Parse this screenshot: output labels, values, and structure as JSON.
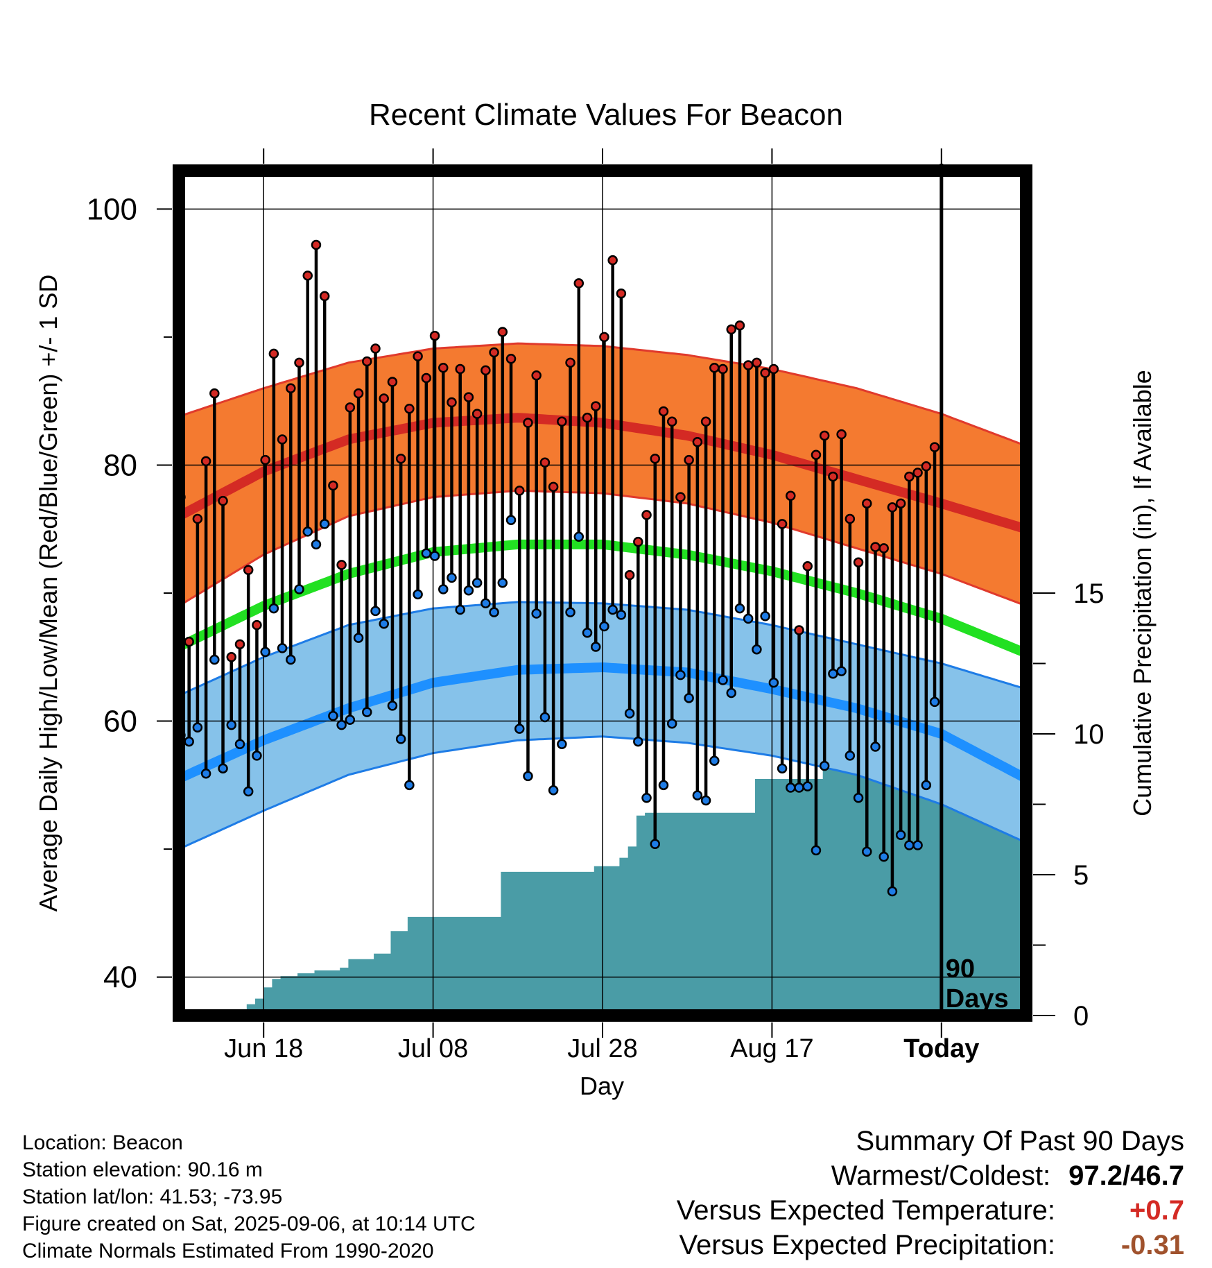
{
  "chart_data": {
    "type": "line",
    "title": "Recent Climate Values For Beacon",
    "xlabel": "Day",
    "ylabel_left": "Average Daily High/Low/Mean (Red/Blue/Green) +/- 1 SD",
    "ylabel_right": "Cumulative Precipitation (in), If Available",
    "ylim_left": [
      37,
      103
    ],
    "ylim_right": [
      0,
      30
    ],
    "left_ticks": [
      "100",
      "80",
      "60",
      "40"
    ],
    "left_tick_values": [
      100,
      80,
      60,
      40
    ],
    "right_ticks": [
      "0",
      "5",
      "10",
      "15"
    ],
    "right_tick_values": [
      0,
      5,
      10,
      15
    ],
    "x_ticks": [
      "Jun 18",
      "Jul 08",
      "Jul 28",
      "Aug 17",
      "Today"
    ],
    "x_tick_days": [
      10,
      30,
      50,
      70,
      90
    ],
    "x_range_days": [
      0,
      100
    ],
    "today_label": "90 Days",
    "colors": {
      "high_band": "#f47a30",
      "high_line": "#d42a24",
      "high_edge": "#e03a2c",
      "low_band": "#86c2ea",
      "low_line": "#1e90ff",
      "low_edge": "#1e7ce6",
      "mean_line": "#22e022",
      "precip": "#4a9ca6",
      "high_marker": "#d42a24",
      "low_marker": "#1e7ce6"
    },
    "normals": {
      "days": [
        0,
        10,
        20,
        30,
        40,
        50,
        60,
        70,
        80,
        90,
        100
      ],
      "high_mean": [
        76.0,
        79.5,
        82.0,
        83.3,
        83.7,
        83.3,
        82.3,
        80.8,
        78.9,
        77.0,
        75.0
      ],
      "high_plus": [
        83.8,
        86.0,
        88.0,
        89.1,
        89.5,
        89.3,
        88.6,
        87.5,
        86.0,
        84.0,
        81.5
      ],
      "high_minus": [
        69.0,
        73.0,
        76.0,
        77.5,
        78.0,
        77.8,
        77.0,
        75.5,
        73.5,
        71.5,
        69.0
      ],
      "low_mean": [
        55.5,
        58.5,
        61.0,
        63.0,
        64.0,
        64.2,
        63.8,
        62.5,
        61.0,
        59.0,
        55.5
      ],
      "low_plus": [
        62.0,
        65.0,
        67.5,
        68.8,
        69.3,
        69.2,
        68.7,
        67.5,
        66.0,
        64.5,
        62.5
      ],
      "low_minus": [
        50.0,
        53.0,
        55.8,
        57.5,
        58.5,
        58.8,
        58.3,
        57.3,
        55.8,
        53.5,
        50.5
      ],
      "mean": [
        65.8,
        69.0,
        71.5,
        73.2,
        73.8,
        73.8,
        73.0,
        71.7,
        70.0,
        68.0,
        65.3
      ]
    },
    "series": [
      {
        "name": "High",
        "values": [
          77.5,
          66.2,
          75.8,
          80.3,
          85.6,
          77.2,
          65.0,
          66.0,
          71.8,
          67.5,
          80.4,
          88.7,
          82.0,
          86.0,
          88.0,
          94.8,
          97.2,
          93.2,
          78.4,
          72.2,
          84.5,
          85.6,
          88.1,
          89.1,
          85.2,
          86.5,
          80.5,
          84.4,
          88.5,
          86.8,
          90.1,
          87.6,
          84.9,
          87.5,
          85.3,
          84.0,
          87.4,
          88.8,
          90.4,
          88.3,
          78.0,
          83.3,
          87.0,
          80.2,
          78.3,
          83.4,
          88.0,
          94.2,
          83.7,
          84.6,
          90.0,
          96.0,
          93.4,
          71.4,
          74.0,
          76.1,
          80.5,
          84.2,
          83.4,
          77.5,
          80.4,
          81.8,
          83.4,
          87.6,
          87.5,
          90.6,
          90.9,
          87.8,
          88.0,
          87.2,
          87.5,
          75.4,
          77.6,
          67.1,
          72.1,
          80.8,
          82.3,
          79.1,
          82.4,
          75.8,
          72.4,
          77.0,
          73.6,
          73.5,
          76.7,
          77.0,
          79.1,
          79.4,
          79.9,
          81.4
        ]
      },
      {
        "name": "Low",
        "values": [
          58.9,
          58.4,
          59.5,
          55.9,
          64.8,
          56.3,
          59.7,
          58.2,
          54.5,
          57.3,
          65.4,
          68.8,
          65.7,
          64.8,
          70.3,
          74.8,
          73.8,
          75.4,
          60.4,
          59.7,
          60.1,
          66.5,
          60.7,
          68.6,
          67.6,
          61.2,
          58.6,
          55.0,
          69.9,
          73.1,
          72.9,
          70.3,
          71.2,
          68.7,
          70.2,
          70.8,
          69.2,
          68.5,
          70.8,
          75.7,
          59.4,
          55.7,
          68.4,
          60.3,
          54.6,
          58.2,
          68.5,
          74.4,
          66.9,
          65.8,
          67.4,
          68.7,
          68.3,
          60.6,
          58.4,
          54.0,
          50.4,
          55.0,
          59.8,
          63.6,
          61.8,
          54.2,
          53.8,
          56.9,
          63.2,
          62.2,
          68.8,
          68.0,
          65.6,
          68.2,
          63.0,
          56.3,
          54.8,
          54.8,
          54.9,
          49.9,
          56.5,
          63.7,
          63.9,
          57.3,
          54.0,
          49.8,
          58.0,
          49.4,
          46.7,
          51.1,
          50.3,
          50.3,
          55.0,
          61.5
        ]
      }
    ],
    "precip_cumulative": {
      "days": [
        0,
        4,
        6,
        7,
        8,
        9,
        10,
        11,
        12,
        13,
        14,
        15,
        16,
        17,
        18,
        19,
        20,
        21,
        22,
        23,
        24,
        25,
        26,
        27,
        28,
        29,
        30,
        31,
        32,
        33,
        34,
        35,
        36,
        37,
        38,
        39,
        40,
        41,
        42,
        43,
        44,
        45,
        46,
        47,
        48,
        49,
        50,
        51,
        52,
        53,
        54,
        55,
        56,
        57,
        58,
        59,
        60,
        61,
        62,
        63,
        64,
        65,
        66,
        67,
        68,
        69,
        70,
        71,
        72,
        73,
        74,
        75,
        76,
        77,
        78,
        79,
        80,
        81,
        82,
        83,
        84,
        85,
        86,
        87,
        88,
        89,
        90,
        91,
        100
      ],
      "values": [
        0.0,
        0.0,
        0.1,
        0.2,
        0.4,
        0.6,
        1.0,
        1.3,
        1.4,
        1.4,
        1.5,
        1.5,
        1.6,
        1.6,
        1.6,
        1.7,
        2.0,
        2.0,
        2.0,
        2.2,
        2.2,
        3.0,
        3.0,
        3.5,
        3.5,
        3.5,
        3.5,
        3.5,
        3.5,
        3.5,
        3.5,
        3.5,
        3.5,
        3.5,
        5.1,
        5.1,
        5.1,
        5.1,
        5.1,
        5.1,
        5.1,
        5.1,
        5.1,
        5.1,
        5.1,
        5.3,
        5.3,
        5.3,
        5.6,
        6.0,
        7.1,
        7.2,
        7.2,
        7.2,
        7.2,
        7.2,
        7.2,
        7.2,
        7.2,
        7.2,
        7.2,
        7.2,
        7.2,
        7.2,
        8.4,
        8.4,
        8.4,
        8.4,
        8.4,
        8.4,
        8.4,
        8.4,
        9.4,
        9.6,
        9.6,
        9.6,
        9.6,
        9.6,
        9.6,
        9.6,
        9.6,
        9.6,
        9.6,
        9.6,
        9.6,
        9.6,
        9.6,
        10.0,
        10.0
      ]
    }
  },
  "footer": {
    "location": "Location: Beacon",
    "elevation": "Station elevation: 90.16 m",
    "latlon": "Station lat/lon: 41.53; -73.95",
    "created": "Figure created on Sat, 2025-09-06, at 10:14 UTC",
    "normals": "Climate Normals Estimated From 1990-2020"
  },
  "summary": {
    "heading": "Summary Of Past 90 Days",
    "warm_label": "Warmest/Coldest:",
    "warm_value": "97.2/46.7",
    "temp_label": "Versus Expected Temperature:",
    "temp_value": "+0.7",
    "temp_color": "#d42a24",
    "precip_label": "Versus Expected Precipitation:",
    "precip_value": "-0.31",
    "precip_color": "#a0522d"
  }
}
